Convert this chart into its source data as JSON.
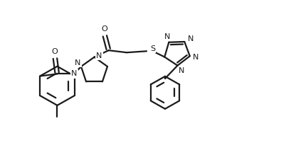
{
  "bg_color": "#ffffff",
  "line_color": "#1a1a1a",
  "line_width": 1.6,
  "figsize": [
    4.1,
    2.12
  ],
  "dpi": 100,
  "xlim": [
    0,
    10.5
  ],
  "ylim": [
    0,
    5.5
  ]
}
